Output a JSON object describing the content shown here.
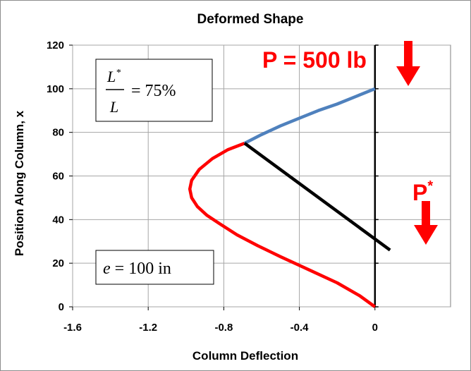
{
  "chart_data": {
    "type": "line",
    "title": "Deformed Shape",
    "xlabel": "Column Deflection",
    "ylabel": "Position Along Column, x",
    "xlim": [
      -1.6,
      0.4
    ],
    "ylim": [
      0,
      120
    ],
    "x_ticks": [
      "-1.6",
      "-1.2",
      "-0.8",
      "-0.4",
      "0"
    ],
    "x_tick_values": [
      -1.6,
      -1.2,
      -0.8,
      -0.4,
      0
    ],
    "y_ticks": [
      "0",
      "20",
      "40",
      "60",
      "80",
      "100",
      "120"
    ],
    "y_tick_values": [
      0,
      20,
      40,
      60,
      80,
      100,
      120
    ],
    "grid": true,
    "legend": "none",
    "series": [
      {
        "color": "#ff0000",
        "x": [
          0,
          -0.08,
          -0.2,
          -0.35,
          -0.5,
          -0.62,
          -0.73,
          -0.82,
          -0.89,
          -0.94,
          -0.97,
          -0.98,
          -0.97,
          -0.93,
          -0.86,
          -0.78,
          -0.69
        ],
        "y": [
          0,
          5,
          11,
          17,
          23,
          28,
          33,
          38,
          42,
          46,
          50,
          54,
          58,
          63,
          68,
          72,
          75
        ]
      },
      {
        "color": "#4f81bd",
        "x": [
          -0.69,
          -0.6,
          -0.5,
          -0.4,
          -0.3,
          -0.2,
          -0.1,
          0
        ],
        "y": [
          75,
          79,
          83,
          86.5,
          90,
          93,
          96.5,
          100
        ]
      },
      {
        "color": "#000000",
        "x": [
          -0.69,
          0.08
        ],
        "y": [
          75,
          26
        ]
      }
    ],
    "annotations": {
      "load_label": "P = 500 lb",
      "p_star_label": "P",
      "p_star_sup": "*",
      "ratio_num": "L",
      "ratio_num_sup": "*",
      "ratio_den": "L",
      "ratio_value": "= 75%",
      "ecc_symbol": "e",
      "ecc_value": "= 100 in"
    },
    "colors": {
      "load_arrow": "#ff0000",
      "column_axis": "#000000"
    }
  }
}
